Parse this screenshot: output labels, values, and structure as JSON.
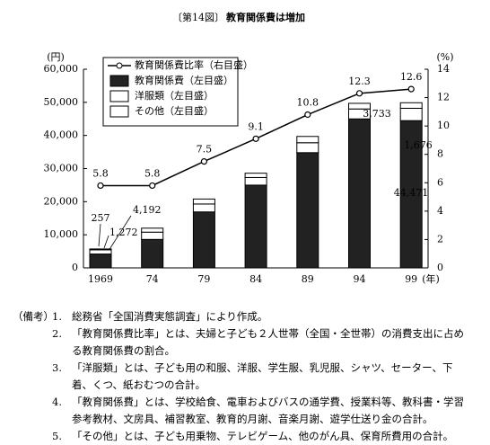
{
  "chart_data": {
    "type": "bar",
    "stacked": true,
    "figure_label": "〔第14図〕",
    "title": "教育関係費は増加",
    "y_label": "(円)",
    "y2_label": "(%)",
    "x_unit": "(年)",
    "categories": [
      "1969",
      "74",
      "79",
      "84",
      "89",
      "94",
      "99"
    ],
    "series": [
      {
        "name": "教育関係費比率（右目盛）",
        "type": "line",
        "axis": "y2",
        "color": "#000000",
        "values": [
          5.8,
          5.8,
          7.5,
          9.1,
          10.8,
          12.3,
          12.6
        ]
      },
      {
        "name": "教育関係費（左目盛）",
        "color": "#222222",
        "values": [
          4192,
          8600,
          16900,
          25000,
          34800,
          45000,
          44471
        ],
        "value_labels": [
          "4,192",
          null,
          null,
          null,
          null,
          null,
          "44,471"
        ]
      },
      {
        "name": "洋服類（左目盛）",
        "color": "#ffffff",
        "values": [
          1272,
          2200,
          2400,
          2300,
          3000,
          3000,
          3733
        ],
        "value_labels": [
          "1,272",
          null,
          null,
          null,
          null,
          null,
          "3,733"
        ]
      },
      {
        "name": "その他（左目盛）",
        "color": "#ffffff",
        "values": [
          257,
          1200,
          1500,
          1300,
          1900,
          1700,
          1676
        ],
        "value_labels": [
          "257",
          null,
          null,
          null,
          null,
          null,
          "1,676"
        ]
      }
    ],
    "ylim": [
      0,
      60000
    ],
    "yticks": [
      0,
      {
        "value": 10000,
        "label": "10,000"
      },
      {
        "value": 20000,
        "label": "20,000"
      },
      {
        "value": 30000,
        "label": "30,000"
      },
      {
        "value": 40000,
        "label": "40,000"
      },
      {
        "value": 50000,
        "label": "50,000"
      },
      {
        "value": 60000,
        "label": "60,000"
      }
    ],
    "y2lim": [
      0,
      14
    ],
    "y2ticks": [
      0,
      2,
      4,
      6,
      8,
      10,
      12,
      14
    ],
    "legend": "upper-left",
    "grid": false
  },
  "notes": {
    "label": "（備考）",
    "items": [
      {
        "number": "1.",
        "text": "総務省「全国消費実態調査」により作成。"
      },
      {
        "number": "2.",
        "text": "「教育関係費比率」とは、夫婦と子ども２人世帯（全国・全世帯）の消費支出に占める教育関係費の割合。"
      },
      {
        "number": "3.",
        "text": "「洋服類」とは、子ども用の和服、洋服、学生服、乳児服、シャツ、セーター、下着、くつ、紙おむつの合計。"
      },
      {
        "number": "4.",
        "text": "「教育関係費」とは、学校給食、電車およびバスの通学費、授業料等、教科書・学習参考教材、文房具、補習教室、教育的月謝、音楽月謝、遊学仕送り金の合計。"
      },
      {
        "number": "5.",
        "text": "「その他」とは、子ども用乗物、テレビゲーム、他のがん具、保育所費用の合計。"
      }
    ]
  }
}
